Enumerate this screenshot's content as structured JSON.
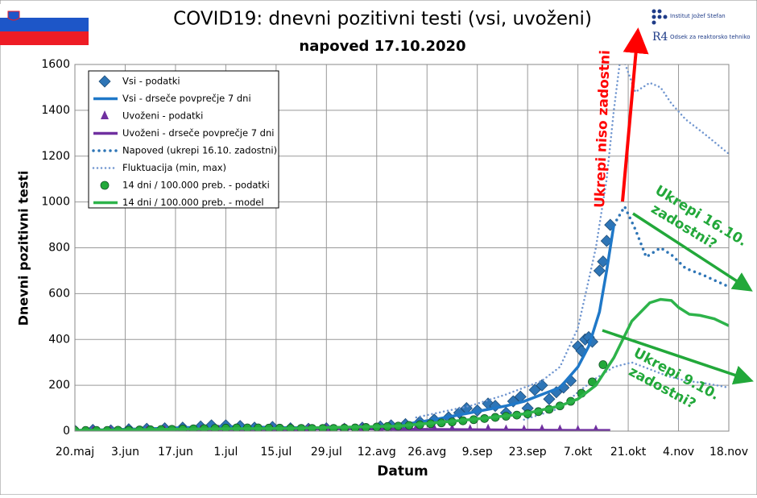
{
  "chart_data": {
    "type": "line",
    "title": "COVID19: dnevni pozitivni testi (vsi, uvoženi)",
    "subtitle": "napoved 17.10.2020",
    "institute": "Institut Jožef Stefan",
    "logo_mark": "R4",
    "department": "Odsek za reaktorsko tehniko",
    "x_label": "Datum",
    "y_label": "Dnevni pozitivni  testi",
    "annotations": [
      "Ukrepi niso zadostni",
      "Ukrepi 16.10.",
      "zadostni?",
      "Ukrepi 9.10.",
      "zadostni?"
    ],
    "grid": true,
    "xlim": [
      0,
      182
    ],
    "xticks": [
      {
        "value": 0,
        "label": "20.maj"
      },
      {
        "value": 14,
        "label": "3.jun"
      },
      {
        "value": 28,
        "label": "17.jun"
      },
      {
        "value": 42,
        "label": "1.jul"
      },
      {
        "value": 56,
        "label": "15.jul"
      },
      {
        "value": 70,
        "label": "29.jul"
      },
      {
        "value": 84,
        "label": "12.avg"
      },
      {
        "value": 98,
        "label": "26.avg"
      },
      {
        "value": 112,
        "label": "9.sep"
      },
      {
        "value": 126,
        "label": "23.sep"
      },
      {
        "value": 140,
        "label": "7.okt"
      },
      {
        "value": 154,
        "label": "21.okt"
      },
      {
        "value": 168,
        "label": "4.nov"
      },
      {
        "value": 182,
        "label": "18.nov"
      }
    ],
    "ylim": [
      0,
      1600
    ],
    "yticks": [
      0,
      200,
      400,
      600,
      800,
      1000,
      1200,
      1400,
      1600
    ],
    "series": [
      {
        "name": "Vsi - podatki",
        "color": "#2e75b6",
        "marker": "diamond",
        "x": [
          0,
          5,
          10,
          15,
          20,
          25,
          30,
          35,
          38,
          42,
          46,
          50,
          55,
          60,
          65,
          70,
          75,
          80,
          85,
          88,
          92,
          96,
          100,
          104,
          107,
          109,
          112,
          115,
          117,
          120,
          122,
          124,
          126,
          128,
          130,
          132,
          134,
          136,
          138,
          140,
          141,
          142,
          143,
          144,
          146,
          147,
          148,
          149
        ],
        "values": [
          2,
          5,
          3,
          8,
          10,
          12,
          15,
          20,
          25,
          25,
          22,
          15,
          18,
          12,
          10,
          12,
          10,
          15,
          20,
          25,
          30,
          40,
          50,
          60,
          80,
          100,
          90,
          120,
          110,
          80,
          130,
          150,
          100,
          180,
          200,
          140,
          170,
          190,
          220,
          370,
          350,
          400,
          410,
          390,
          700,
          740,
          830,
          900
        ]
      },
      {
        "name": "Vsi - drseče povprečje 7 dni",
        "color": "#1f78c8",
        "style": "solid",
        "x": [
          0,
          20,
          40,
          60,
          80,
          90,
          100,
          110,
          120,
          125,
          130,
          135,
          140,
          143,
          146,
          148,
          150
        ],
        "values": [
          3,
          10,
          20,
          15,
          15,
          25,
          50,
          80,
          110,
          130,
          160,
          190,
          280,
          370,
          520,
          700,
          900
        ]
      },
      {
        "name": "Uvoženi - podatki",
        "color": "#7030a0",
        "marker": "triangle",
        "x": [
          0,
          5,
          10,
          15,
          20,
          25,
          30,
          35,
          40,
          45,
          50,
          55,
          60,
          65,
          70,
          75,
          80,
          85,
          90,
          95,
          100,
          105,
          110,
          115,
          120,
          125,
          130,
          135,
          140,
          145
        ],
        "values": [
          0,
          1,
          0,
          2,
          1,
          3,
          2,
          5,
          4,
          3,
          2,
          4,
          6,
          8,
          10,
          12,
          10,
          8,
          10,
          12,
          10,
          8,
          6,
          8,
          5,
          4,
          6,
          5,
          3,
          4
        ]
      },
      {
        "name": "Uvoženi - drseče povprečje 7 dni",
        "color": "#7030a0",
        "style": "solid",
        "x": [
          0,
          20,
          40,
          60,
          70,
          80,
          90,
          100,
          110,
          120,
          130,
          140,
          149
        ],
        "values": [
          1,
          2,
          3,
          6,
          10,
          10,
          8,
          7,
          6,
          5,
          4,
          3,
          3
        ]
      },
      {
        "name": "Napoved (ukrepi 16.10. zadostni)",
        "color": "#2e75b6",
        "style": "dotted",
        "x": [
          150,
          153,
          156,
          159,
          163,
          166,
          170,
          175,
          182
        ],
        "values": [
          900,
          980,
          880,
          760,
          800,
          770,
          710,
          680,
          630
        ]
      },
      {
        "name": "Fluktuacija (min, max)",
        "color": "#6f95cf",
        "style": "fine",
        "x": [
          95,
          110,
          120,
          130,
          135,
          140,
          145,
          148,
          150,
          152,
          156,
          160,
          163,
          166,
          170,
          175,
          182
        ],
        "values": [
          60,
          110,
          160,
          220,
          280,
          450,
          800,
          1100,
          1400,
          1650,
          1480,
          1520,
          1500,
          1430,
          1360,
          1300,
          1210
        ],
        "lower": {
          "x": [
            125,
            135,
            140,
            145,
            150,
            155,
            160,
            165,
            170,
            175,
            182
          ],
          "values": [
            50,
            100,
            170,
            230,
            280,
            300,
            270,
            240,
            220,
            210,
            190
          ]
        }
      },
      {
        "name": "14 dni / 100.000 preb. - podatki",
        "color": "#22a83a",
        "marker": "circle",
        "x": [
          0,
          3,
          6,
          9,
          12,
          15,
          18,
          21,
          24,
          27,
          30,
          33,
          36,
          39,
          42,
          45,
          48,
          51,
          54,
          57,
          60,
          63,
          66,
          69,
          72,
          75,
          78,
          81,
          84,
          87,
          90,
          93,
          96,
          99,
          102,
          105,
          108,
          111,
          114,
          117,
          120,
          123,
          126,
          129,
          132,
          135,
          138,
          141,
          144,
          147
        ],
        "values": [
          3,
          3,
          3,
          3,
          4,
          4,
          5,
          6,
          7,
          8,
          9,
          10,
          11,
          12,
          13,
          14,
          14,
          14,
          13,
          13,
          12,
          12,
          12,
          12,
          12,
          13,
          14,
          16,
          18,
          20,
          22,
          25,
          28,
          32,
          36,
          40,
          45,
          50,
          55,
          60,
          65,
          70,
          75,
          85,
          95,
          110,
          130,
          165,
          215,
          290
        ]
      },
      {
        "name": "14 dni / 100.000 preb. - model",
        "color": "#2db34a",
        "style": "solid",
        "x": [
          0,
          30,
          60,
          90,
          110,
          125,
          135,
          140,
          145,
          150,
          155,
          160,
          163,
          166,
          168,
          171,
          174,
          178,
          182
        ],
        "values": [
          3,
          9,
          12,
          22,
          50,
          75,
          110,
          140,
          200,
          320,
          480,
          560,
          575,
          570,
          540,
          510,
          505,
          490,
          460
        ]
      }
    ]
  }
}
